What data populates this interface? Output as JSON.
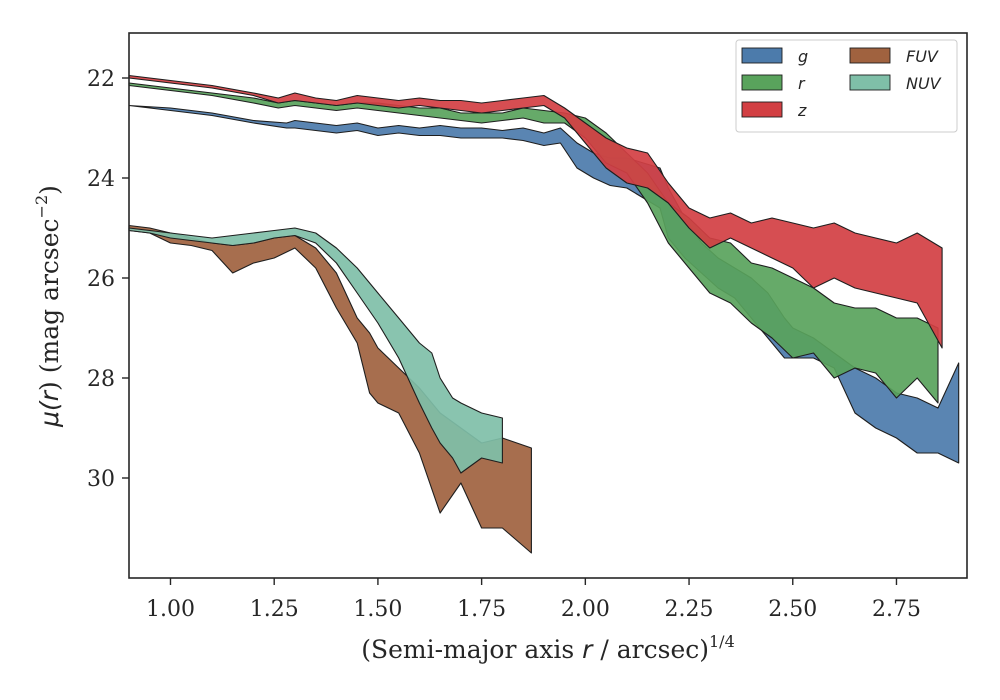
{
  "chart_data": {
    "type": "area",
    "title": "",
    "xlabel_parts": {
      "prefix": "(Semi-major axis ",
      "var": "r",
      "suffix": " / arcsec)",
      "exponent": "1/4"
    },
    "ylabel_parts": {
      "prefix": "μ(",
      "var": "r",
      "suffix": ") (mag arcsec",
      "exponent": "−2",
      "close": ")"
    },
    "xlim": [
      0.9,
      2.92
    ],
    "ylim": [
      32.0,
      21.1
    ],
    "y_inverted": true,
    "xticks": [
      "1.00",
      "1.25",
      "1.50",
      "1.75",
      "2.00",
      "2.25",
      "2.50",
      "2.75"
    ],
    "xtick_values": [
      1.0,
      1.25,
      1.5,
      1.75,
      2.0,
      2.25,
      2.5,
      2.75
    ],
    "yticks": [
      "22",
      "24",
      "26",
      "28",
      "30"
    ],
    "ytick_values": [
      22,
      24,
      26,
      28,
      30
    ],
    "grid": false,
    "legend_position": "top-right",
    "legend_columns": 2,
    "series": [
      {
        "name": "g",
        "color": "#4c7bab",
        "x": [
          0.9,
          1.0,
          1.1,
          1.2,
          1.28,
          1.3,
          1.35,
          1.4,
          1.45,
          1.5,
          1.55,
          1.6,
          1.65,
          1.7,
          1.75,
          1.8,
          1.85,
          1.9,
          1.94,
          1.98,
          2.02,
          2.06,
          2.1,
          2.14,
          2.18,
          2.2,
          2.24,
          2.28,
          2.32,
          2.36,
          2.4,
          2.44,
          2.48,
          2.5,
          2.55,
          2.6,
          2.65,
          2.7,
          2.75,
          2.8,
          2.85,
          2.9
        ],
        "y_upper": [
          22.55,
          22.6,
          22.7,
          22.85,
          22.9,
          22.85,
          22.9,
          22.95,
          22.9,
          23.0,
          22.95,
          23.0,
          22.95,
          23.0,
          23.0,
          23.05,
          23.0,
          23.1,
          23.0,
          23.3,
          23.5,
          23.6,
          23.6,
          23.7,
          23.8,
          24.2,
          24.8,
          25.3,
          25.6,
          25.8,
          26.0,
          26.3,
          26.8,
          27.0,
          27.2,
          27.5,
          27.8,
          28.0,
          28.3,
          28.4,
          28.6,
          27.7
        ],
        "y_lower": [
          22.55,
          22.65,
          22.75,
          22.9,
          23.0,
          23.0,
          23.05,
          23.1,
          23.05,
          23.15,
          23.1,
          23.15,
          23.15,
          23.2,
          23.2,
          23.2,
          23.25,
          23.35,
          23.3,
          23.8,
          24.0,
          24.15,
          24.2,
          24.4,
          24.6,
          25.2,
          25.6,
          25.9,
          26.2,
          26.4,
          26.8,
          27.2,
          27.6,
          27.6,
          27.6,
          27.8,
          28.7,
          29.0,
          29.2,
          29.5,
          29.5,
          29.7
        ]
      },
      {
        "name": "r",
        "color": "#59a35c",
        "x": [
          0.9,
          1.0,
          1.1,
          1.2,
          1.26,
          1.3,
          1.35,
          1.4,
          1.45,
          1.5,
          1.55,
          1.6,
          1.65,
          1.7,
          1.75,
          1.8,
          1.85,
          1.9,
          1.95,
          2.0,
          2.05,
          2.1,
          2.15,
          2.2,
          2.25,
          2.3,
          2.35,
          2.4,
          2.45,
          2.5,
          2.55,
          2.6,
          2.65,
          2.7,
          2.75,
          2.8,
          2.85
        ],
        "y_upper": [
          22.1,
          22.2,
          22.3,
          22.4,
          22.5,
          22.45,
          22.5,
          22.55,
          22.5,
          22.5,
          22.55,
          22.6,
          22.6,
          22.7,
          22.7,
          22.7,
          22.6,
          22.65,
          22.7,
          22.8,
          23.1,
          23.5,
          23.9,
          24.5,
          24.8,
          25.2,
          25.3,
          25.7,
          25.8,
          26.0,
          26.2,
          26.5,
          26.6,
          26.6,
          26.8,
          26.8,
          27.0
        ],
        "y_lower": [
          22.15,
          22.25,
          22.35,
          22.5,
          22.6,
          22.55,
          22.6,
          22.65,
          22.6,
          22.65,
          22.7,
          22.75,
          22.8,
          22.85,
          22.9,
          22.85,
          22.8,
          22.9,
          22.9,
          23.2,
          23.7,
          23.9,
          24.5,
          25.3,
          25.8,
          26.3,
          26.5,
          26.9,
          27.2,
          27.6,
          27.5,
          28.0,
          27.8,
          27.9,
          28.4,
          28.0,
          28.5
        ]
      },
      {
        "name": "z",
        "color": "#d23f43",
        "x": [
          0.9,
          1.0,
          1.1,
          1.2,
          1.26,
          1.3,
          1.35,
          1.4,
          1.45,
          1.5,
          1.55,
          1.6,
          1.65,
          1.7,
          1.75,
          1.8,
          1.85,
          1.9,
          1.95,
          2.0,
          2.05,
          2.1,
          2.15,
          2.2,
          2.25,
          2.3,
          2.35,
          2.4,
          2.45,
          2.5,
          2.55,
          2.6,
          2.65,
          2.7,
          2.75,
          2.8,
          2.86
        ],
        "y_upper": [
          21.95,
          22.05,
          22.15,
          22.3,
          22.4,
          22.3,
          22.4,
          22.45,
          22.35,
          22.4,
          22.45,
          22.4,
          22.45,
          22.45,
          22.5,
          22.45,
          22.4,
          22.35,
          22.6,
          22.9,
          23.2,
          23.4,
          23.5,
          24.1,
          24.6,
          24.8,
          24.7,
          24.9,
          24.8,
          24.9,
          25.0,
          24.9,
          25.1,
          25.2,
          25.3,
          25.1,
          25.4
        ],
        "y_lower": [
          22.0,
          22.1,
          22.2,
          22.35,
          22.5,
          22.45,
          22.5,
          22.55,
          22.5,
          22.55,
          22.6,
          22.55,
          22.6,
          22.65,
          22.7,
          22.65,
          22.6,
          22.55,
          22.8,
          23.3,
          23.8,
          24.1,
          24.2,
          24.5,
          25.0,
          25.4,
          25.2,
          25.4,
          25.6,
          25.8,
          26.2,
          26.0,
          26.2,
          26.3,
          26.4,
          26.5,
          27.4
        ]
      },
      {
        "name": "FUV",
        "color": "#a0623f",
        "x": [
          0.9,
          0.95,
          1.0,
          1.05,
          1.1,
          1.15,
          1.2,
          1.25,
          1.3,
          1.35,
          1.4,
          1.45,
          1.48,
          1.5,
          1.55,
          1.6,
          1.65,
          1.7,
          1.75,
          1.8,
          1.87
        ],
        "y_upper": [
          24.95,
          25.0,
          25.1,
          25.2,
          25.3,
          25.35,
          25.3,
          25.2,
          25.15,
          25.4,
          25.9,
          26.8,
          27.1,
          27.4,
          27.8,
          28.2,
          28.7,
          29.0,
          29.3,
          29.2,
          29.4
        ],
        "y_lower": [
          25.05,
          25.1,
          25.3,
          25.35,
          25.45,
          25.9,
          25.7,
          25.6,
          25.4,
          25.8,
          26.6,
          27.3,
          28.3,
          28.5,
          28.7,
          29.5,
          30.7,
          30.1,
          31.0,
          31.0,
          31.5
        ]
      },
      {
        "name": "NUV",
        "color": "#7fbfa8",
        "x": [
          0.9,
          0.95,
          1.0,
          1.05,
          1.1,
          1.15,
          1.2,
          1.25,
          1.3,
          1.35,
          1.4,
          1.45,
          1.5,
          1.55,
          1.6,
          1.63,
          1.65,
          1.68,
          1.7,
          1.75,
          1.8
        ],
        "y_upper": [
          25.0,
          25.05,
          25.1,
          25.15,
          25.2,
          25.15,
          25.1,
          25.05,
          25.0,
          25.1,
          25.4,
          25.8,
          26.3,
          26.8,
          27.3,
          27.5,
          28.0,
          28.4,
          28.5,
          28.7,
          28.8
        ],
        "y_lower": [
          25.05,
          25.1,
          25.2,
          25.25,
          25.3,
          25.35,
          25.3,
          25.2,
          25.15,
          25.3,
          25.7,
          26.3,
          26.9,
          27.6,
          28.5,
          29.0,
          29.3,
          29.6,
          29.9,
          29.6,
          29.7
        ]
      }
    ]
  }
}
